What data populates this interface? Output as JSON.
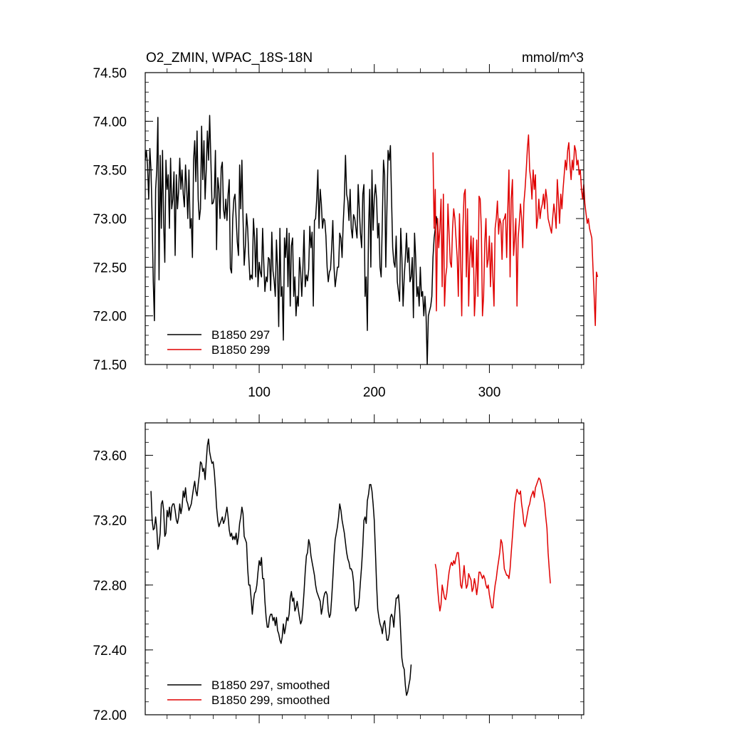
{
  "chart_data": [
    {
      "type": "line",
      "title": "O2_ZMIN, WPAC_18S-18N",
      "units": "mmol/m^3",
      "xlabel": "",
      "ylabel": "",
      "xlim": [
        1,
        382
      ],
      "ylim": [
        71.5,
        74.5
      ],
      "x_ticks": [
        100,
        200,
        300
      ],
      "x_tick_labels": [
        "100",
        "200",
        "300"
      ],
      "y_ticks": [
        71.5,
        72.0,
        72.5,
        73.0,
        73.5,
        74.0,
        74.5
      ],
      "y_tick_labels": [
        "71.50",
        "72.00",
        "72.50",
        "73.00",
        "73.50",
        "74.00",
        "74.50"
      ],
      "legend_position": "bottom-left",
      "series": [
        {
          "name": "B1850 297",
          "color": "#000000",
          "x_start": 1,
          "values": [
            73.6,
            73.7,
            73.55,
            73.2,
            73.72,
            73.5,
            73.0,
            72.35,
            71.95,
            73.3,
            73.5,
            74.04,
            72.37,
            73.65,
            72.9,
            73.7,
            72.95,
            72.55,
            73.6,
            73.3,
            73.45,
            72.9,
            73.62,
            73.1,
            73.2,
            73.48,
            72.62,
            73.45,
            73.1,
            73.28,
            73.62,
            73.3,
            73.5,
            73.25,
            73.12,
            73.55,
            73.32,
            73.0,
            73.5,
            72.9,
            73.0,
            72.6,
            73.6,
            73.8,
            73.38,
            73.9,
            73.2,
            72.99,
            73.1,
            73.95,
            73.4,
            73.8,
            73.2,
            73.5,
            73.9,
            73.6,
            74.06,
            73.6,
            73.15,
            73.16,
            73.22,
            73.7,
            72.68,
            73.42,
            73.3,
            73.0,
            73.52,
            73.58,
            73.1,
            73.0,
            73.2,
            72.98,
            73.25,
            73.4,
            72.49,
            72.44,
            73.0,
            73.2,
            73.25,
            73.0,
            72.76,
            72.62,
            73.55,
            73.1,
            73.6,
            73.0,
            72.52,
            72.72,
            73.05,
            72.9,
            72.6,
            72.37,
            72.42,
            72.38,
            73.0,
            72.8,
            72.4,
            72.9,
            72.3,
            72.55,
            72.45,
            72.4,
            72.9,
            72.55,
            72.25,
            72.4,
            72.35,
            72.6,
            72.58,
            72.26,
            72.86,
            72.46,
            72.36,
            72.2,
            72.78,
            72.48,
            71.89,
            72.9,
            72.2,
            72.3,
            71.75,
            72.8,
            72.6,
            72.9,
            72.3,
            72.85,
            72.1,
            72.72,
            72.8,
            72.2,
            72.4,
            72.0,
            72.2,
            72.1,
            72.6,
            72.45,
            72.2,
            72.5,
            72.88,
            72.3,
            72.42,
            72.36,
            72.48,
            72.92,
            72.7,
            72.86,
            72.1,
            72.98,
            73.0,
            73.2,
            73.5,
            72.9,
            73.3,
            73.15,
            72.9,
            73.0,
            72.98,
            72.82,
            72.5,
            72.35,
            72.45,
            72.48,
            72.7,
            72.98,
            72.5,
            72.3,
            72.4,
            72.5,
            72.5,
            72.85,
            72.8,
            72.6,
            72.95,
            73.2,
            73.65,
            73.25,
            73.18,
            72.98,
            73.3,
            72.9,
            72.8,
            73.04,
            73.0,
            72.9,
            72.8,
            73.35,
            73.1,
            72.85,
            72.7,
            73.25,
            73.35,
            72.2,
            72.4,
            71.85,
            72.9,
            73.3,
            72.5,
            73.5,
            72.88,
            73.2,
            73.35,
            73.2,
            72.8,
            72.95,
            72.5,
            72.4,
            73.0,
            73.6,
            73.45,
            72.5,
            73.1,
            73.7,
            73.6,
            73.75,
            73.2,
            72.7,
            72.55,
            72.5,
            72.82,
            72.35,
            72.25,
            72.15,
            72.9,
            72.6,
            72.1,
            72.4,
            72.6,
            72.85,
            72.55,
            72.7,
            72.35,
            72.4,
            72.6,
            71.98,
            72.85,
            72.6,
            72.2,
            72.3,
            72.1,
            72.5,
            72.2,
            72.25,
            72.0,
            72.2,
            72.0,
            71.5,
            72.0,
            72.05,
            72.1,
            72.2,
            72.6,
            72.8,
            72.9,
            73.02,
            72.88
          ]
        },
        {
          "name": "B1850 299",
          "color": "#e00000",
          "x_start": 251,
          "values": [
            73.68,
            72.9,
            73.3,
            72.05,
            73.0,
            72.7,
            72.9,
            73.2,
            72.3,
            73.25,
            72.1,
            72.4,
            72.5,
            73.15,
            72.85,
            72.55,
            72.5,
            72.9,
            73.1,
            73.0,
            72.8,
            72.6,
            72.2,
            73.05,
            72.6,
            72.0,
            72.9,
            73.25,
            73.3,
            72.4,
            73.1,
            72.1,
            72.58,
            72.82,
            72.5,
            72.8,
            72.0,
            72.25,
            72.78,
            72.2,
            73.23,
            73.2,
            72.9,
            72.0,
            72.2,
            72.75,
            73.0,
            72.5,
            72.58,
            72.82,
            72.3,
            72.75,
            72.4,
            72.1,
            72.9,
            73.0,
            73.18,
            72.84,
            73.0,
            72.95,
            72.58,
            72.98,
            73.0,
            73.05,
            72.6,
            73.1,
            73.5,
            72.4,
            73.2,
            73.4,
            72.62,
            72.8,
            73.0,
            72.1,
            72.8,
            72.96,
            73.15,
            73.0,
            72.7,
            73.16,
            73.3,
            73.5,
            73.72,
            73.86,
            73.5,
            73.4,
            73.2,
            73.5,
            73.3,
            73.45,
            72.9,
            73.0,
            73.2,
            73.0,
            73.1,
            73.15,
            73.25,
            73.1,
            73.3,
            73.2,
            73.0,
            72.95,
            72.9,
            72.85,
            73.0,
            73.15,
            73.05,
            72.9,
            73.4,
            73.2,
            72.95,
            73.25,
            73.1,
            73.3,
            73.45,
            73.6,
            73.5,
            73.7,
            73.78,
            73.55,
            73.4,
            73.6,
            73.5,
            73.75,
            73.7,
            73.55,
            73.6,
            73.45,
            73.5,
            73.3,
            73.2,
            73.35,
            73.15,
            73.05,
            72.95,
            73.0,
            72.9,
            72.85,
            72.8,
            72.5,
            72.2,
            71.9,
            72.45,
            72.4
          ]
        }
      ]
    },
    {
      "type": "line",
      "title": "",
      "xlabel": "",
      "ylabel": "",
      "xlim": [
        1,
        382
      ],
      "ylim": [
        72.0,
        73.8
      ],
      "x_ticks": [
        100,
        200,
        300
      ],
      "x_tick_labels": [
        "",
        "",
        ""
      ],
      "y_ticks": [
        72.0,
        72.4,
        72.8,
        73.2,
        73.6
      ],
      "y_tick_labels": [
        "72.00",
        "72.40",
        "72.80",
        "73.20",
        "73.60"
      ],
      "legend_position": "bottom-left",
      "series": [
        {
          "name": "B1850 297, smoothed",
          "color": "#000000",
          "x_start": 6,
          "values": [
            73.38,
            73.2,
            73.14,
            73.15,
            73.22,
            73.15,
            73.02,
            73.05,
            73.12,
            73.3,
            73.32,
            73.26,
            73.1,
            73.12,
            73.26,
            73.22,
            73.28,
            73.2,
            73.28,
            73.3,
            73.3,
            73.26,
            73.2,
            73.18,
            73.22,
            73.3,
            73.24,
            73.28,
            73.38,
            73.34,
            73.4,
            73.32,
            73.3,
            73.26,
            73.28,
            73.3,
            73.35,
            73.4,
            73.44,
            73.38,
            73.35,
            73.42,
            73.48,
            73.56,
            73.55,
            73.5,
            73.52,
            73.45,
            73.56,
            73.66,
            73.7,
            73.62,
            73.58,
            73.55,
            73.56,
            73.5,
            73.4,
            73.28,
            73.2,
            73.16,
            73.18,
            73.2,
            73.22,
            73.18,
            73.2,
            73.24,
            73.28,
            73.22,
            73.14,
            73.1,
            73.12,
            73.08,
            73.1,
            73.08,
            73.12,
            73.05,
            73.1,
            73.18,
            73.22,
            73.28,
            73.24,
            73.1,
            73.08,
            73.06,
            72.9,
            72.8,
            72.8,
            72.72,
            72.62,
            72.7,
            72.75,
            72.76,
            72.8,
            72.88,
            72.95,
            72.92,
            72.97,
            72.84,
            72.84,
            72.7,
            72.6,
            72.54,
            72.54,
            72.6,
            72.62,
            72.62,
            72.58,
            72.6,
            72.55,
            72.6,
            72.52,
            72.5,
            72.46,
            72.44,
            72.48,
            72.56,
            72.5,
            72.54,
            72.6,
            72.58,
            72.62,
            72.72,
            72.76,
            72.7,
            72.72,
            72.64,
            72.66,
            72.7,
            72.65,
            72.6,
            72.56,
            72.58,
            72.66,
            72.76,
            72.88,
            72.98,
            73.0,
            73.08,
            73.05,
            72.98,
            72.94,
            72.9,
            72.86,
            72.8,
            72.76,
            72.74,
            72.72,
            72.7,
            72.62,
            72.66,
            72.72,
            72.75,
            72.76,
            72.74,
            72.64,
            72.6,
            72.62,
            72.72,
            72.84,
            72.98,
            73.08,
            73.12,
            73.16,
            73.22,
            73.3,
            73.26,
            73.2,
            73.16,
            73.12,
            73.06,
            73.0,
            72.96,
            72.94,
            72.9,
            72.9,
            72.88,
            72.82,
            72.68,
            72.64,
            72.66,
            72.66,
            72.72,
            72.82,
            72.92,
            73.04,
            73.2,
            73.22,
            73.18,
            73.32,
            73.36,
            73.42,
            73.42,
            73.38,
            73.3,
            73.2,
            73.0,
            72.8,
            72.65,
            72.6,
            72.56,
            72.54,
            72.5,
            72.56,
            72.58,
            72.52,
            72.46,
            72.46,
            72.5,
            72.6,
            72.62,
            72.6,
            72.54,
            72.64,
            72.72,
            72.72,
            72.74,
            72.65,
            72.5,
            72.35,
            72.3,
            72.28,
            72.18,
            72.12,
            72.14,
            72.18,
            72.22,
            72.31
          ]
        },
        {
          "name": "B1850 299, smoothed",
          "color": "#e00000",
          "x_start": 253,
          "values": [
            72.93,
            72.89,
            72.78,
            72.7,
            72.64,
            72.68,
            72.8,
            72.76,
            72.72,
            72.71,
            72.75,
            72.82,
            72.88,
            72.92,
            72.94,
            72.92,
            72.95,
            72.93,
            72.97,
            73.0,
            73.0,
            72.92,
            72.8,
            72.78,
            72.84,
            72.92,
            72.84,
            72.78,
            72.8,
            72.87,
            72.85,
            72.83,
            72.76,
            72.78,
            72.84,
            72.8,
            72.74,
            72.8,
            72.88,
            72.88,
            72.86,
            72.84,
            72.86,
            72.84,
            72.8,
            72.78,
            72.8,
            72.74,
            72.7,
            72.66,
            72.66,
            72.74,
            72.8,
            72.84,
            72.9,
            72.95,
            73.0,
            73.08,
            73.06,
            72.99,
            72.9,
            72.88,
            72.86,
            72.86,
            72.84,
            72.9,
            73.0,
            73.1,
            73.2,
            73.3,
            73.35,
            73.39,
            73.37,
            73.36,
            73.38,
            73.3,
            73.25,
            73.18,
            73.16,
            73.2,
            73.24,
            73.28,
            73.3,
            73.34,
            73.36,
            73.38,
            73.34,
            73.4,
            73.42,
            73.44,
            73.46,
            73.45,
            73.42,
            73.38,
            73.34,
            73.3,
            73.22,
            73.15,
            73.0,
            72.9,
            72.81
          ]
        }
      ]
    }
  ]
}
